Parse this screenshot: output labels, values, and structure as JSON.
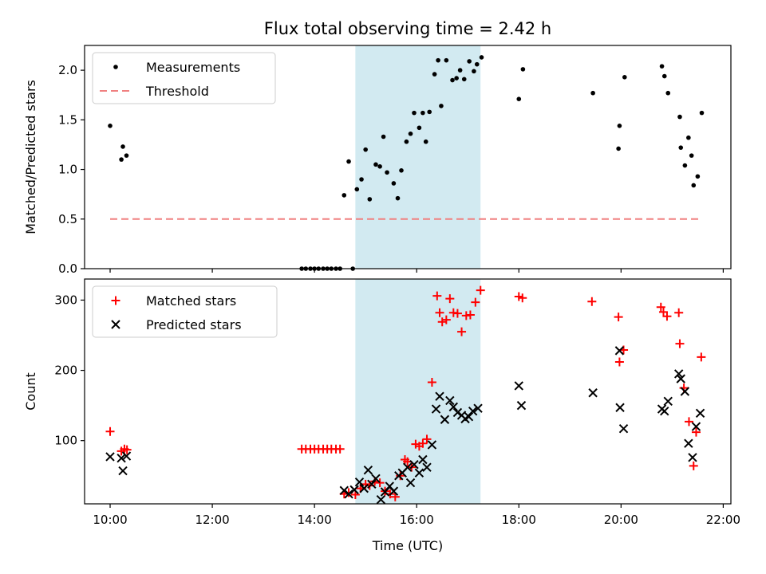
{
  "chart_data": {
    "title": "Flux total observing time = 2.42 h",
    "xlabel": "Time (UTC)",
    "x_unit": "hours UTC",
    "xlim": [
      9.5,
      22.15
    ],
    "xticks": [
      10,
      12,
      14,
      16,
      18,
      20,
      22
    ],
    "xtick_labels": [
      "10:00",
      "12:00",
      "14:00",
      "16:00",
      "18:00",
      "20:00",
      "22:00"
    ],
    "highlight": {
      "x_start": 14.8,
      "x_end": 17.25,
      "color": "#add8e6"
    },
    "panels": [
      {
        "type": "scatter",
        "ylabel": "Matched/Predicted stars",
        "ylim": [
          0,
          2.25
        ],
        "yticks": [
          0.0,
          0.5,
          1.0,
          1.5,
          2.0
        ],
        "ytick_labels": [
          "0.0",
          "0.5",
          "1.0",
          "1.5",
          "2.0"
        ],
        "legend": "top-left",
        "series": [
          {
            "name": "Measurements",
            "marker": "dot",
            "color": "#000000",
            "points": [
              [
                10.0,
                1.44
              ],
              [
                10.22,
                1.1
              ],
              [
                10.25,
                1.23
              ],
              [
                10.32,
                1.14
              ],
              [
                13.75,
                0.0
              ],
              [
                13.83,
                0.0
              ],
              [
                13.92,
                0.0
              ],
              [
                14.0,
                0.0
              ],
              [
                14.08,
                0.0
              ],
              [
                14.17,
                0.0
              ],
              [
                14.25,
                0.0
              ],
              [
                14.33,
                0.0
              ],
              [
                14.42,
                0.0
              ],
              [
                14.5,
                0.0
              ],
              [
                14.75,
                0.0
              ],
              [
                14.58,
                0.74
              ],
              [
                14.67,
                1.08
              ],
              [
                14.83,
                0.8
              ],
              [
                14.92,
                0.9
              ],
              [
                15.0,
                1.2
              ],
              [
                15.08,
                0.7
              ],
              [
                15.2,
                1.05
              ],
              [
                15.28,
                1.03
              ],
              [
                15.35,
                1.33
              ],
              [
                15.42,
                0.97
              ],
              [
                15.55,
                0.86
              ],
              [
                15.63,
                0.71
              ],
              [
                15.7,
                0.99
              ],
              [
                15.8,
                1.28
              ],
              [
                15.88,
                1.36
              ],
              [
                15.95,
                1.57
              ],
              [
                16.05,
                1.42
              ],
              [
                16.12,
                1.57
              ],
              [
                16.18,
                1.28
              ],
              [
                16.25,
                1.58
              ],
              [
                16.35,
                1.96
              ],
              [
                16.42,
                2.1
              ],
              [
                16.48,
                1.64
              ],
              [
                16.58,
                2.1
              ],
              [
                16.7,
                1.9
              ],
              [
                16.78,
                1.92
              ],
              [
                16.85,
                2.0
              ],
              [
                16.93,
                1.91
              ],
              [
                17.03,
                2.09
              ],
              [
                17.12,
                1.99
              ],
              [
                17.18,
                2.06
              ],
              [
                17.27,
                2.13
              ],
              [
                18.0,
                1.71
              ],
              [
                18.08,
                2.01
              ],
              [
                19.45,
                1.77
              ],
              [
                19.95,
                1.21
              ],
              [
                19.97,
                1.44
              ],
              [
                20.07,
                1.93
              ],
              [
                20.8,
                2.04
              ],
              [
                20.85,
                1.94
              ],
              [
                20.92,
                1.77
              ],
              [
                21.15,
                1.53
              ],
              [
                21.17,
                1.22
              ],
              [
                21.25,
                1.04
              ],
              [
                21.32,
                1.32
              ],
              [
                21.38,
                1.14
              ],
              [
                21.42,
                0.84
              ],
              [
                21.5,
                0.93
              ],
              [
                21.58,
                1.57
              ]
            ]
          },
          {
            "name": "Threshold",
            "marker": "dashed-line",
            "color": "#f08080",
            "points": [
              [
                10.0,
                0.5
              ],
              [
                21.58,
                0.5
              ]
            ]
          }
        ]
      },
      {
        "type": "scatter",
        "ylabel": "Count",
        "ylim": [
          10,
          330
        ],
        "yticks": [
          100,
          200,
          300
        ],
        "ytick_labels": [
          "100",
          "200",
          "300"
        ],
        "legend": "top-left",
        "series": [
          {
            "name": "Matched stars",
            "marker": "plus",
            "color": "#ff0000",
            "points": [
              [
                10.0,
                113
              ],
              [
                10.22,
                85
              ],
              [
                10.28,
                88
              ],
              [
                10.33,
                87
              ],
              [
                13.75,
                88
              ],
              [
                13.83,
                88
              ],
              [
                13.92,
                88
              ],
              [
                14.0,
                88
              ],
              [
                14.08,
                88
              ],
              [
                14.17,
                88
              ],
              [
                14.25,
                88
              ],
              [
                14.33,
                88
              ],
              [
                14.42,
                88
              ],
              [
                14.5,
                88
              ],
              [
                14.58,
                24
              ],
              [
                14.67,
                26
              ],
              [
                14.8,
                23
              ],
              [
                14.9,
                32
              ],
              [
                15.0,
                38
              ],
              [
                15.08,
                36
              ],
              [
                15.18,
                42
              ],
              [
                15.28,
                40
              ],
              [
                15.38,
                28
              ],
              [
                15.48,
                24
              ],
              [
                15.58,
                20
              ],
              [
                15.68,
                50
              ],
              [
                15.77,
                73
              ],
              [
                15.82,
                70
              ],
              [
                15.9,
                62
              ],
              [
                15.98,
                95
              ],
              [
                16.05,
                92
              ],
              [
                16.12,
                96
              ],
              [
                16.2,
                102
              ],
              [
                16.3,
                183
              ],
              [
                16.4,
                306
              ],
              [
                16.45,
                282
              ],
              [
                16.5,
                269
              ],
              [
                16.58,
                272
              ],
              [
                16.65,
                302
              ],
              [
                16.72,
                282
              ],
              [
                16.8,
                281
              ],
              [
                16.88,
                255
              ],
              [
                16.97,
                278
              ],
              [
                17.05,
                279
              ],
              [
                17.15,
                297
              ],
              [
                17.25,
                314
              ],
              [
                18.0,
                305
              ],
              [
                18.07,
                303
              ],
              [
                19.43,
                298
              ],
              [
                19.95,
                276
              ],
              [
                19.97,
                212
              ],
              [
                20.05,
                229
              ],
              [
                20.78,
                290
              ],
              [
                20.83,
                283
              ],
              [
                20.9,
                277
              ],
              [
                21.13,
                282
              ],
              [
                21.15,
                238
              ],
              [
                21.23,
                175
              ],
              [
                21.33,
                127
              ],
              [
                21.42,
                64
              ],
              [
                21.47,
                112
              ],
              [
                21.57,
                219
              ]
            ]
          },
          {
            "name": "Predicted stars",
            "marker": "x",
            "color": "#000000",
            "points": [
              [
                10.0,
                77
              ],
              [
                10.22,
                75
              ],
              [
                10.25,
                57
              ],
              [
                10.32,
                78
              ],
              [
                14.58,
                29
              ],
              [
                14.67,
                24
              ],
              [
                14.78,
                30
              ],
              [
                14.88,
                41
              ],
              [
                14.97,
                32
              ],
              [
                15.05,
                58
              ],
              [
                15.12,
                38
              ],
              [
                15.2,
                46
              ],
              [
                15.3,
                16
              ],
              [
                15.38,
                27
              ],
              [
                15.47,
                35
              ],
              [
                15.55,
                28
              ],
              [
                15.65,
                50
              ],
              [
                15.72,
                54
              ],
              [
                15.82,
                62
              ],
              [
                15.88,
                40
              ],
              [
                15.95,
                66
              ],
              [
                16.05,
                54
              ],
              [
                16.12,
                73
              ],
              [
                16.2,
                62
              ],
              [
                16.3,
                94
              ],
              [
                16.38,
                145
              ],
              [
                16.45,
                163
              ],
              [
                16.55,
                130
              ],
              [
                16.65,
                157
              ],
              [
                16.72,
                148
              ],
              [
                16.8,
                140
              ],
              [
                16.88,
                136
              ],
              [
                16.95,
                131
              ],
              [
                17.02,
                134
              ],
              [
                17.1,
                142
              ],
              [
                17.2,
                146
              ],
              [
                18.0,
                178
              ],
              [
                18.05,
                150
              ],
              [
                19.45,
                168
              ],
              [
                19.97,
                228
              ],
              [
                19.98,
                147
              ],
              [
                20.05,
                117
              ],
              [
                20.8,
                145
              ],
              [
                20.85,
                142
              ],
              [
                20.92,
                156
              ],
              [
                21.13,
                195
              ],
              [
                21.17,
                188
              ],
              [
                21.25,
                170
              ],
              [
                21.32,
                96
              ],
              [
                21.4,
                76
              ],
              [
                21.47,
                120
              ],
              [
                21.55,
                139
              ]
            ]
          }
        ]
      }
    ]
  }
}
